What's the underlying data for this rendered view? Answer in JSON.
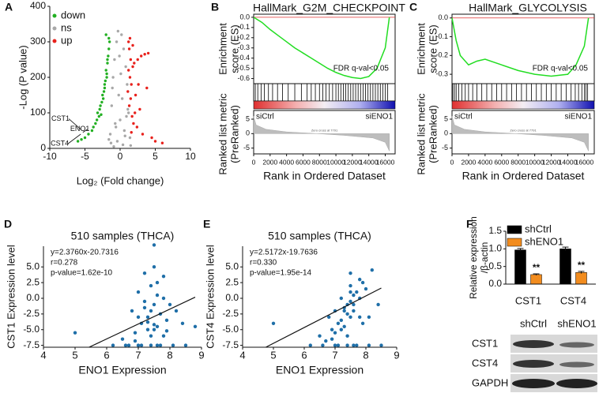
{
  "chart_data": [
    {
      "type": "volcano",
      "panel": "A",
      "ylabel": "-Log (P value)",
      "xlabel": "Log₂ (Fold change)",
      "xlim": [
        -10,
        10
      ],
      "xticks": [
        -10,
        -5,
        0,
        5,
        10
      ],
      "ylim": [
        0,
        400
      ],
      "yticks": [
        0,
        100,
        200,
        300,
        400
      ],
      "legend": "upper left",
      "series": [
        {
          "name": "down",
          "color": "#22b022",
          "x": [
            -1.5,
            -1.8,
            -2.0,
            -2.2,
            -1.6,
            -2.5,
            -2.8,
            -3.0,
            -1.9,
            -2.3,
            -3.5,
            -4.0,
            -2.6,
            -1.7,
            -2.1,
            -3.2,
            -4.5,
            -5.0,
            -2.4,
            -1.6,
            -2.9,
            -3.8,
            -1.8,
            -2.2,
            -6.0,
            -5.5,
            -1.9,
            -2.7,
            -3.3,
            -2.0
          ],
          "y": [
            300,
            250,
            220,
            180,
            280,
            150,
            120,
            90,
            200,
            160,
            70,
            50,
            130,
            260,
            190,
            100,
            40,
            30,
            140,
            310,
            110,
            60,
            240,
            170,
            20,
            25,
            210,
            95,
            80,
            320
          ]
        },
        {
          "name": "ns",
          "color": "#a8a8a8",
          "x": [
            -0.3,
            0.2,
            -0.5,
            0.5,
            -0.8,
            0.8,
            -1.0,
            1.0,
            -0.2,
            0.3,
            -1.2,
            1.2,
            0,
            -0.6,
            0.6,
            -1.4,
            1.4,
            -0.4,
            0.4,
            -0.9,
            0.9,
            -0.1,
            0.1,
            -1.1,
            1.1,
            -0.7,
            0.7,
            -1.3,
            -1.6,
            1.5
          ],
          "y": [
            330,
            320,
            300,
            280,
            250,
            230,
            200,
            180,
            150,
            140,
            120,
            100,
            80,
            60,
            50,
            40,
            30,
            20,
            10,
            5,
            90,
            260,
            210,
            170,
            110,
            70,
            35,
            15,
            25,
            8
          ]
        },
        {
          "name": "up",
          "color": "#e8211c",
          "x": [
            1.2,
            1.3,
            1.5,
            1.8,
            2.0,
            2.5,
            3.0,
            3.5,
            4.0,
            1.4,
            1.6,
            2.2,
            2.8,
            1.1,
            1.3,
            1.7,
            2.4,
            3.2,
            4.5,
            5.0,
            1.9,
            2.6,
            1.2,
            1.5,
            3.8,
            1.4,
            2.1,
            1.8,
            6.0,
            1.6
          ],
          "y": [
            300,
            280,
            250,
            230,
            240,
            250,
            260,
            265,
            268,
            200,
            180,
            150,
            110,
            160,
            120,
            90,
            60,
            40,
            30,
            20,
            70,
            180,
            220,
            140,
            170,
            310,
            100,
            290,
            15,
            45
          ]
        }
      ],
      "annotations": [
        {
          "text": "CST1",
          "x": -5.5,
          "y": 52
        },
        {
          "text": "ENO1",
          "x": -5.3,
          "y": 45
        },
        {
          "text": "CST4",
          "x": -5.6,
          "y": 40
        }
      ]
    },
    {
      "type": "gsea",
      "panel": "B",
      "title": "HallMark_G2M_CHECKPOINT",
      "es_ylabel": [
        "Enrichment",
        "score (ES)"
      ],
      "metric_ylabel": [
        "Ranked list metric",
        "(PreRanked)"
      ],
      "xlabel": "Rank in Ordered Dataset",
      "annotation": "FDR q-val<0.05",
      "zero_cross": "Zero cross at 7791",
      "left_label": "siCtrl",
      "right_label": "siENO1",
      "color": "#22dd22",
      "xlim": [
        0,
        17200
      ],
      "xticks": [
        0,
        2000,
        4000,
        6000,
        8000,
        10000,
        12000,
        14000,
        16000
      ],
      "x": [
        0,
        1000,
        2000,
        3000,
        4000,
        5000,
        6000,
        7000,
        8000,
        9000,
        10000,
        11000,
        12000,
        13000,
        14000,
        15000,
        16000,
        16500
      ],
      "es": [
        0,
        -0.05,
        -0.12,
        -0.18,
        -0.24,
        -0.3,
        -0.35,
        -0.4,
        -0.45,
        -0.5,
        -0.54,
        -0.57,
        -0.59,
        -0.6,
        -0.58,
        -0.5,
        -0.3,
        0
      ],
      "es_ylim": [
        -0.65,
        0.03
      ],
      "es_yticks": [
        {
          "value": 0,
          "label": "0.0"
        },
        -0.1,
        -0.2,
        -0.3,
        -0.4,
        -0.5,
        -0.6
      ],
      "hits": [
        200,
        500,
        900,
        1300,
        1800,
        2300,
        2900,
        3500,
        4200,
        5000,
        5800,
        6500,
        7000,
        7500,
        8000,
        8400,
        8800,
        9200,
        9600,
        10000,
        10300,
        10600,
        10900,
        11200,
        11500,
        11800,
        12100,
        12400,
        12700,
        13000,
        13300,
        13600,
        13900,
        14200,
        14500,
        14800,
        15100,
        15400,
        15700,
        16000,
        16300
      ],
      "metric_x": [
        0,
        300,
        1500,
        4000,
        7791,
        11000,
        14500,
        16000,
        16500
      ],
      "metric_values": [
        6,
        3,
        1.5,
        0.6,
        0,
        -0.6,
        -1.5,
        -3,
        -6
      ],
      "metric_ylim": [
        -7,
        8
      ],
      "metric_yticks": [
        5,
        0,
        -5
      ]
    },
    {
      "type": "gsea",
      "panel": "C",
      "title": "HallMark_GLYCOLYSIS",
      "es_ylabel": [
        "Enrichment",
        "score (ES)"
      ],
      "metric_ylabel": [
        "Ranked list metric",
        "(PreRanked)"
      ],
      "xlabel": "Rank in Ordered Dataset",
      "annotation": "FDR q-val<0.05",
      "zero_cross": "Zero cross at 7791",
      "left_label": "siCtrl",
      "right_label": "siENO1",
      "color": "#22dd22",
      "xlim": [
        0,
        17200
      ],
      "xticks": [
        0,
        2000,
        4000,
        6000,
        8000,
        10000,
        12000,
        14000,
        16000
      ],
      "x": [
        0,
        500,
        1000,
        2000,
        3000,
        4000,
        6000,
        8000,
        10000,
        12000,
        14000,
        15000,
        16000,
        16500
      ],
      "es": [
        0,
        -0.12,
        -0.2,
        -0.25,
        -0.23,
        -0.22,
        -0.25,
        -0.28,
        -0.3,
        -0.31,
        -0.3,
        -0.25,
        -0.15,
        0
      ],
      "es_ylim": [
        -0.35,
        0.02
      ],
      "es_yticks": [
        {
          "value": 0,
          "label": "0.0"
        },
        -0.1,
        -0.2,
        -0.3
      ],
      "hits": [
        100,
        300,
        500,
        800,
        1200,
        1600,
        2000,
        2500,
        3000,
        3600,
        4200,
        4800,
        5400,
        6000,
        6600,
        7200,
        7800,
        8400,
        9000,
        9600,
        10200,
        10800,
        11400,
        12000,
        12600,
        13200,
        13800,
        14400,
        14900,
        15300,
        15700,
        16000,
        16200,
        16400
      ],
      "metric_x": [
        0,
        300,
        1500,
        4000,
        7791,
        11000,
        14500,
        16000,
        16500
      ],
      "metric_values": [
        6,
        3,
        1.5,
        0.6,
        0,
        -0.6,
        -1.5,
        -3,
        -6
      ],
      "metric_ylim": [
        -7,
        8
      ],
      "metric_yticks": [
        5,
        0,
        -5
      ]
    },
    {
      "type": "scatter",
      "panel": "D",
      "title": "510 samples (THCA)",
      "ylabel": "CST1 Expression level",
      "xlabel": "ENO1 Expression",
      "annotation": [
        "y=2.3760x-20.7316",
        "r=0.278",
        "p-value=1.62e-10"
      ],
      "fit": {
        "slope": 2.376,
        "intercept": -20.7316
      },
      "color": "#1f6fa8",
      "xlim": [
        4,
        9
      ],
      "xticks": [
        4,
        5,
        6,
        7,
        8,
        9
      ],
      "ylim": [
        -7.8,
        8.3
      ],
      "yticks": [
        {
          "value": 5,
          "label": "5.0"
        },
        2.5,
        {
          "value": 0,
          "label": "0.0"
        },
        -2.5,
        {
          "value": -5,
          "label": "-5.0"
        },
        -7.5
      ],
      "x": [
        7.5,
        7.2,
        7.8,
        7.0,
        7.4,
        7.6,
        8.0,
        6.8,
        7.3,
        7.7,
        7.1,
        7.9,
        7.5,
        6.9,
        7.4,
        7.6,
        8.2,
        6.5,
        7.2,
        7.8,
        7.3,
        7.5,
        7.0,
        7.7,
        8.5,
        6.6,
        7.4,
        7.6,
        7.1,
        8.1,
        5.0,
        6.2,
        7.5,
        7.3,
        7.8,
        7.0,
        7.6,
        8.4,
        6.9,
        7.2,
        8.8,
        7.5,
        7.4,
        7.9,
        6.7
      ],
      "y": [
        8.5,
        4,
        3.5,
        1,
        2,
        0.5,
        -1,
        -2,
        -3,
        -2.5,
        -4,
        -3.5,
        -5,
        -5.5,
        -6,
        -4.5,
        -2,
        -6.5,
        -1.5,
        0,
        -3.8,
        -4.2,
        -7.5,
        -7.5,
        -7.5,
        -7.5,
        -7.5,
        -7.5,
        -7.5,
        -7.5,
        -5.5,
        -7.5,
        -1,
        -5,
        -6,
        -3,
        2.5,
        -4,
        -6.8,
        -0.5,
        -4.5,
        5,
        -2,
        -5.2,
        -7.5
      ]
    },
    {
      "type": "scatter",
      "panel": "E",
      "title": "510 samples (THCA)",
      "ylabel": "CST4 Expression level",
      "xlabel": "ENO1 Expression",
      "annotation": [
        "y=2.5172x-19.7636",
        "r=0.330",
        "p-value=1.95e-14"
      ],
      "fit": {
        "slope": 2.5172,
        "intercept": -19.7636
      },
      "color": "#1f6fa8",
      "xlim": [
        4,
        9
      ],
      "xticks": [
        4,
        5,
        6,
        7,
        8,
        9
      ],
      "ylim": [
        -7.8,
        8.3
      ],
      "yticks": [
        {
          "value": 5,
          "label": "5.0"
        },
        2.5,
        {
          "value": 0,
          "label": "0.0"
        },
        -2.5,
        {
          "value": -5,
          "label": "-5.0"
        },
        -7.5
      ],
      "x": [
        7.5,
        7.2,
        7.8,
        7.0,
        7.4,
        7.6,
        8.0,
        6.8,
        7.3,
        7.7,
        7.1,
        7.9,
        7.5,
        6.9,
        7.4,
        7.6,
        8.2,
        6.5,
        7.2,
        7.8,
        7.3,
        7.5,
        7.0,
        7.7,
        8.5,
        6.6,
        7.4,
        7.6,
        7.1,
        8.1,
        5.0,
        6.2,
        7.5,
        7.3,
        7.8,
        7.0,
        7.6,
        8.4,
        6.9,
        7.2,
        8.1,
        7.5,
        7.4,
        7.9,
        6.7
      ],
      "y": [
        2,
        0,
        3,
        -2,
        -1,
        0.5,
        1.5,
        -3,
        -1.5,
        1,
        -4,
        2.5,
        -0.5,
        -5,
        -2.5,
        -1,
        4.5,
        -6,
        -3.5,
        0,
        -2,
        -3,
        -7.5,
        -7.5,
        -7.5,
        -7.5,
        -7.5,
        -7.5,
        -7.5,
        -7.5,
        -4,
        -7.5,
        1,
        -4.5,
        -3,
        -5.5,
        -2,
        -1,
        -6.5,
        -5,
        -3,
        4,
        -6,
        -4,
        -6.8
      ]
    },
    {
      "type": "bar",
      "panel": "F",
      "ylabel": [
        "Relative expression",
        "/β-actin"
      ],
      "categories": [
        "CST1",
        "CST4"
      ],
      "ylim": [
        0,
        1.5
      ],
      "yticks": [
        {
          "value": 0,
          "label": "0.0"
        },
        0.5,
        {
          "value": 1,
          "label": "1.0"
        },
        1.5
      ],
      "series": [
        {
          "name": "shCtrl",
          "color": "#000000",
          "values": [
            0.97,
            1.0
          ],
          "errors": [
            0.04,
            0.05
          ]
        },
        {
          "name": "shENO1",
          "color": "#f28c1e",
          "values": [
            0.27,
            0.33
          ],
          "errors": [
            0.02,
            0.03
          ],
          "labels": [
            "**",
            "**"
          ]
        }
      ]
    }
  ],
  "blot": {
    "columns": [
      "shCtrl",
      "shENO1"
    ],
    "rows": [
      "CST1",
      "CST4",
      "GAPDH"
    ]
  }
}
